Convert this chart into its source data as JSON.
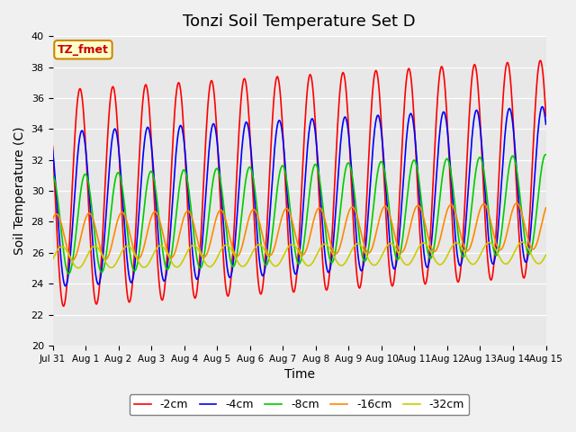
{
  "title": "Tonzi Soil Temperature Set D",
  "xlabel": "Time",
  "ylabel": "Soil Temperature (C)",
  "ylim": [
    20,
    40
  ],
  "annotation": "TZ_fmet",
  "x_tick_labels": [
    "Jul 31",
    "Aug 1",
    "Aug 2",
    "Aug 3",
    "Aug 4",
    "Aug 5",
    "Aug 6",
    "Aug 7",
    "Aug 8",
    "Aug 9",
    "Aug 10",
    "Aug 11",
    "Aug 12",
    "Aug 13",
    "Aug 14",
    "Aug 15"
  ],
  "lines": [
    {
      "label": "-2cm",
      "color": "#ff0000",
      "amplitude": 7.0,
      "base": 29.5,
      "phase": 0.0,
      "trend": 0.13
    },
    {
      "label": "-4cm",
      "color": "#0000ff",
      "amplitude": 5.0,
      "base": 28.8,
      "phase": 0.06,
      "trend": 0.11
    },
    {
      "label": "-8cm",
      "color": "#00cc00",
      "amplitude": 3.2,
      "base": 27.8,
      "phase": 0.16,
      "trend": 0.09
    },
    {
      "label": "-16cm",
      "color": "#ff8800",
      "amplitude": 1.5,
      "base": 27.0,
      "phase": 0.28,
      "trend": 0.05
    },
    {
      "label": "-32cm",
      "color": "#cccc00",
      "amplitude": 0.7,
      "base": 25.7,
      "phase": 0.45,
      "trend": 0.02
    }
  ],
  "bg_color": "#e8e8e8",
  "plot_bg_color": "#e8e8e8",
  "title_fontsize": 13,
  "axis_fontsize": 10,
  "legend_fontsize": 9,
  "linewidth": 1.2
}
